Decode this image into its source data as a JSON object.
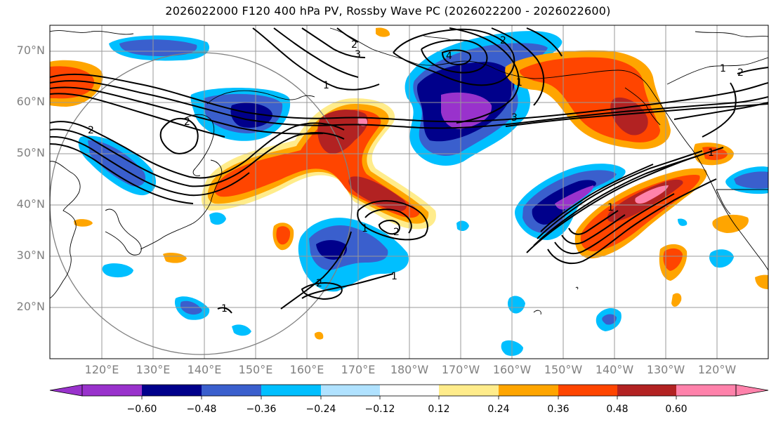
{
  "title": "2026022000 F120 400 hPa PV, Rossby Wave PC (2026022200 - 2026022600)",
  "lat_labels": [
    "70°N",
    "60°N",
    "50°N",
    "40°N",
    "30°N",
    "20°N"
  ],
  "lon_labels": [
    "120°E",
    "130°E",
    "140°E",
    "150°E",
    "160°E",
    "170°E",
    "180°W",
    "170°W",
    "160°W",
    "150°W",
    "140°W",
    "130°W",
    "120°W"
  ],
  "colorbar": {
    "tick_labels": [
      "−0.60",
      "−0.48",
      "−0.36",
      "−0.24",
      "−0.12",
      "0.12",
      "0.24",
      "0.36",
      "0.48",
      "0.60"
    ],
    "colors": [
      "#9932cc",
      "#00008b",
      "#3a5fcd",
      "#00bfff",
      "#b0e2ff",
      "#ffffff",
      "#ffec8b",
      "#ffa500",
      "#ff4500",
      "#b22222",
      "#ff82ab",
      "#ff82ab"
    ],
    "extend": "both"
  },
  "contour_labels": [
    "2",
    "3",
    "2",
    "1",
    "2",
    "4",
    "2",
    "1",
    "3",
    "2",
    "1",
    "1",
    "2",
    "1",
    "1",
    "1",
    "1",
    "2"
  ],
  "colors": {
    "grid": "#999999",
    "coast": "#000000",
    "contour": "#000000",
    "tick_label": "#808080"
  }
}
